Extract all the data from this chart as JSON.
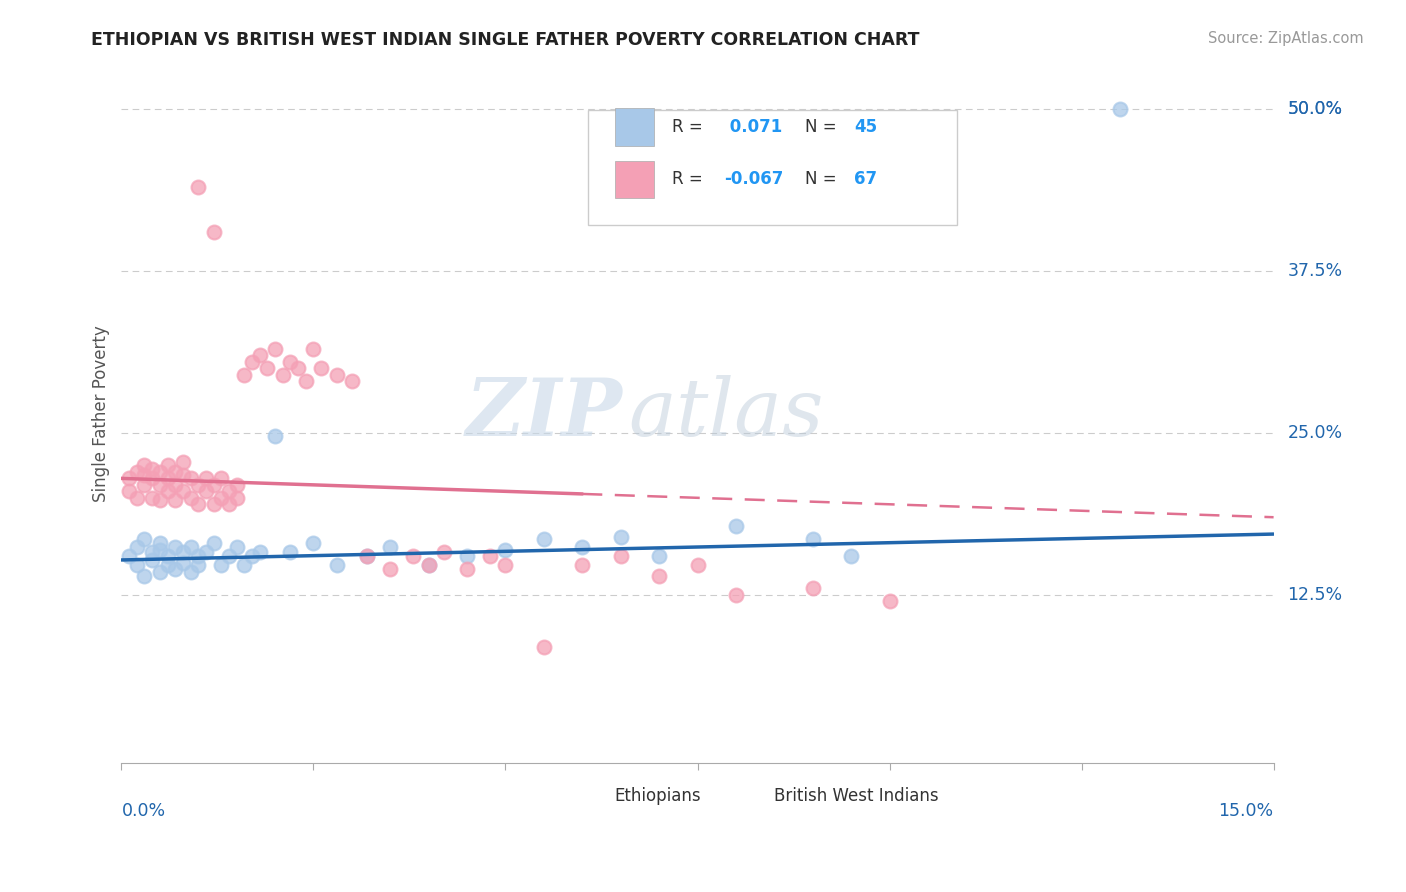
{
  "title": "ETHIOPIAN VS BRITISH WEST INDIAN SINGLE FATHER POVERTY CORRELATION CHART",
  "source": "Source: ZipAtlas.com",
  "ylabel": "Single Father Poverty",
  "ytick_labels": [
    "12.5%",
    "25.0%",
    "37.5%",
    "50.0%"
  ],
  "ytick_values": [
    0.125,
    0.25,
    0.375,
    0.5
  ],
  "xlim": [
    0.0,
    0.15
  ],
  "ylim": [
    -0.005,
    0.535
  ],
  "legend_label_blue": "Ethiopians",
  "legend_label_pink": "British West Indians",
  "blue_color": "#a8c8e8",
  "pink_color": "#f4a0b5",
  "blue_line_color": "#2166ac",
  "pink_line_color": "#e07090",
  "watermark_zip": "ZIP",
  "watermark_atlas": "atlas",
  "blue_scatter_x": [
    0.001,
    0.002,
    0.002,
    0.003,
    0.003,
    0.004,
    0.004,
    0.005,
    0.005,
    0.005,
    0.006,
    0.006,
    0.007,
    0.007,
    0.008,
    0.008,
    0.009,
    0.009,
    0.01,
    0.01,
    0.011,
    0.012,
    0.013,
    0.014,
    0.015,
    0.016,
    0.017,
    0.018,
    0.02,
    0.022,
    0.025,
    0.028,
    0.032,
    0.035,
    0.04,
    0.045,
    0.05,
    0.055,
    0.06,
    0.065,
    0.07,
    0.08,
    0.09,
    0.095,
    0.13
  ],
  "blue_scatter_y": [
    0.155,
    0.148,
    0.162,
    0.14,
    0.168,
    0.152,
    0.158,
    0.143,
    0.16,
    0.165,
    0.148,
    0.155,
    0.162,
    0.145,
    0.15,
    0.158,
    0.143,
    0.162,
    0.148,
    0.155,
    0.158,
    0.165,
    0.148,
    0.155,
    0.162,
    0.148,
    0.155,
    0.158,
    0.248,
    0.158,
    0.165,
    0.148,
    0.155,
    0.162,
    0.148,
    0.155,
    0.16,
    0.168,
    0.162,
    0.17,
    0.155,
    0.178,
    0.168,
    0.155,
    0.5
  ],
  "pink_scatter_x": [
    0.001,
    0.001,
    0.002,
    0.002,
    0.003,
    0.003,
    0.003,
    0.004,
    0.004,
    0.004,
    0.005,
    0.005,
    0.005,
    0.006,
    0.006,
    0.006,
    0.007,
    0.007,
    0.007,
    0.008,
    0.008,
    0.008,
    0.009,
    0.009,
    0.01,
    0.01,
    0.011,
    0.011,
    0.012,
    0.012,
    0.013,
    0.013,
    0.014,
    0.014,
    0.015,
    0.015,
    0.016,
    0.017,
    0.018,
    0.019,
    0.02,
    0.021,
    0.022,
    0.023,
    0.024,
    0.025,
    0.026,
    0.028,
    0.03,
    0.032,
    0.035,
    0.038,
    0.04,
    0.042,
    0.045,
    0.048,
    0.05,
    0.055,
    0.06,
    0.065,
    0.07,
    0.075,
    0.08,
    0.09,
    0.1,
    0.01,
    0.012
  ],
  "pink_scatter_y": [
    0.205,
    0.215,
    0.2,
    0.22,
    0.21,
    0.225,
    0.218,
    0.2,
    0.215,
    0.222,
    0.198,
    0.21,
    0.22,
    0.205,
    0.215,
    0.225,
    0.198,
    0.21,
    0.22,
    0.205,
    0.218,
    0.228,
    0.2,
    0.215,
    0.195,
    0.21,
    0.205,
    0.215,
    0.195,
    0.21,
    0.2,
    0.215,
    0.195,
    0.205,
    0.2,
    0.21,
    0.295,
    0.305,
    0.31,
    0.3,
    0.315,
    0.295,
    0.305,
    0.3,
    0.29,
    0.315,
    0.3,
    0.295,
    0.29,
    0.155,
    0.145,
    0.155,
    0.148,
    0.158,
    0.145,
    0.155,
    0.148,
    0.085,
    0.148,
    0.155,
    0.14,
    0.148,
    0.125,
    0.13,
    0.12,
    0.44,
    0.405
  ]
}
